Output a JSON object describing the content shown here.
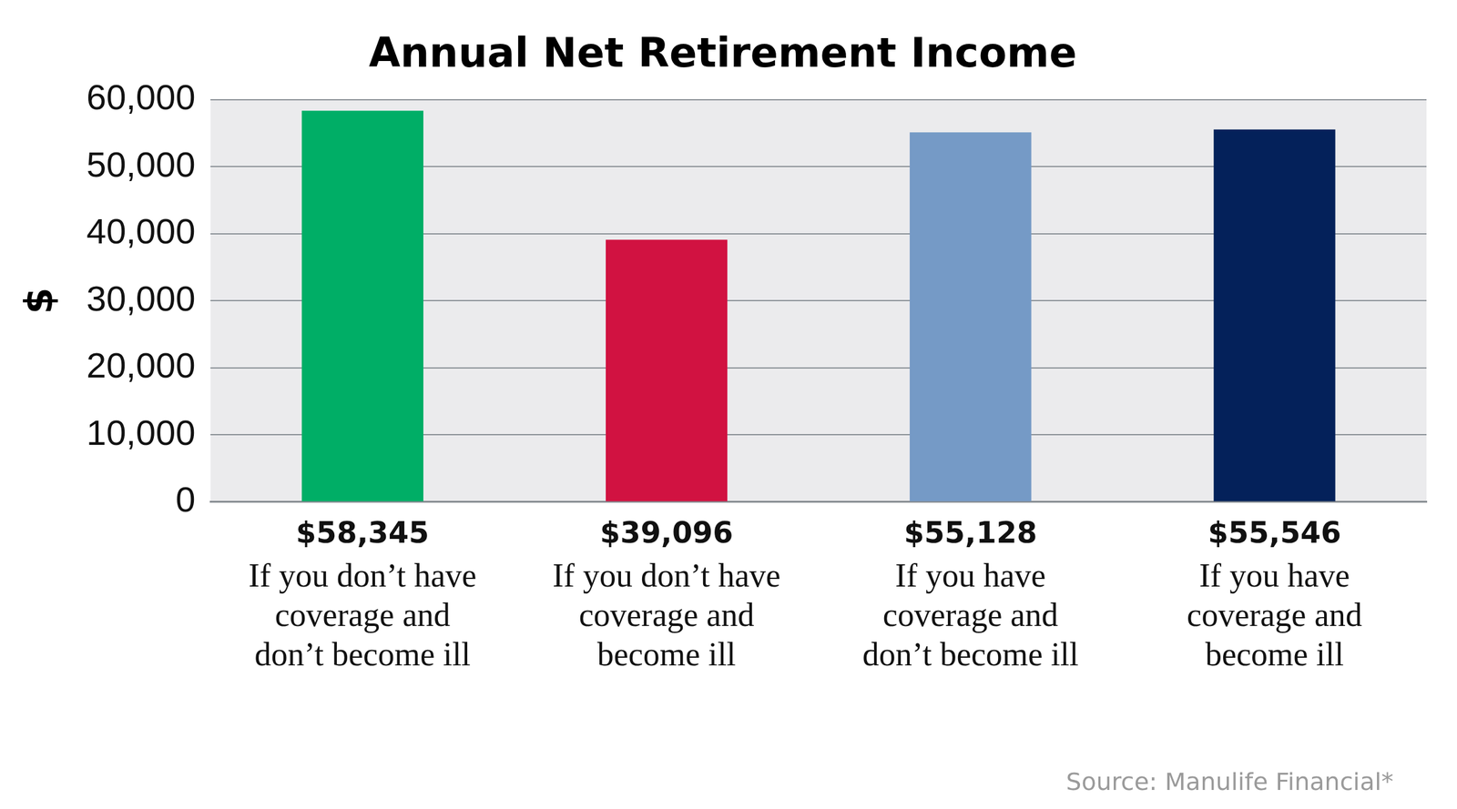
{
  "chart_data": {
    "type": "bar",
    "title": "Annual Net Retirement Income",
    "ylabel": "$",
    "categories": [
      "If you don’t have coverage and don’t become ill",
      "If you don’t have coverage and become ill",
      "If you have coverage and don’t become ill",
      "If you have coverage and become ill"
    ],
    "values": [
      58345,
      39096,
      55128,
      55546
    ],
    "value_labels": [
      "$58,345",
      "$39,096",
      "$55,128",
      "$55,546"
    ],
    "data_labels": true,
    "colors": [
      "#00ae66",
      "#d11241",
      "#759ac6",
      "#04215a"
    ],
    "ylim": [
      0,
      60000
    ],
    "yticks": [
      0,
      {
        "value": 10000,
        "label": "10,000"
      },
      {
        "value": 20000,
        "label": "20,000"
      },
      {
        "value": 30000,
        "label": "30,000"
      },
      {
        "value": 40000,
        "label": "40,000"
      },
      {
        "value": 50000,
        "label": "50,000"
      },
      {
        "value": 60000,
        "label": "60,000"
      }
    ],
    "grid": true,
    "source": "Source: Manulife Financial*"
  }
}
